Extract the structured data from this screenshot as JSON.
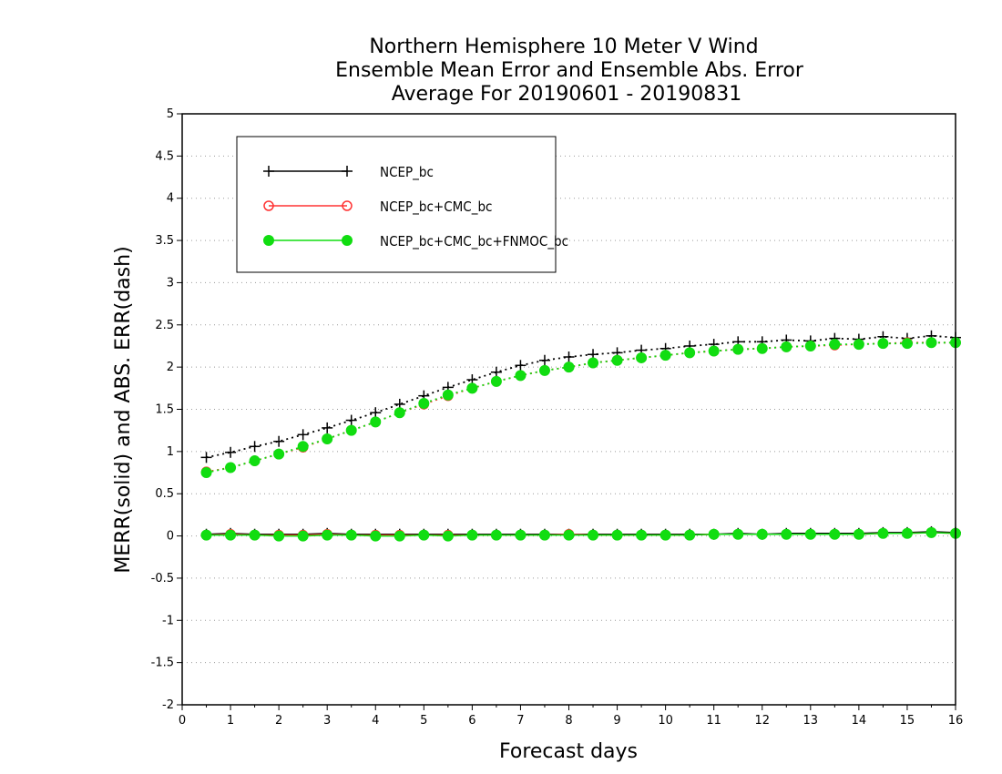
{
  "chart_data": {
    "type": "line",
    "title": [
      "Northern Hemisphere 10 Meter V Wind",
      "Ensemble Mean Error and Ensemble Abs. Error",
      "Average For 20190601 - 20190831"
    ],
    "xlabel": "Forecast days",
    "ylabel": "MERR(solid) and ABS. ERR(dash)",
    "xlim": [
      0,
      16
    ],
    "ylim": [
      -2,
      5
    ],
    "xticks": [
      "0",
      "1",
      "2",
      "3",
      "4",
      "5",
      "6",
      "7",
      "8",
      "9",
      "10",
      "11",
      "12",
      "13",
      "14",
      "15",
      "16"
    ],
    "yticks": [
      "5",
      "4.5",
      "4",
      "3.5",
      "3",
      "2.5",
      "2",
      "1.5",
      "1",
      "0.5",
      "0",
      "-0.5",
      "-1",
      "-1.5",
      "-2"
    ],
    "grid": "horizontal dotted",
    "legend_position": "top-left",
    "x": [
      0.5,
      1,
      1.5,
      2,
      2.5,
      3,
      3.5,
      4,
      4.5,
      5,
      5.5,
      6,
      6.5,
      7,
      7.5,
      8,
      8.5,
      9,
      9.5,
      10,
      10.5,
      11,
      11.5,
      12,
      12.5,
      13,
      13.5,
      14,
      14.5,
      15,
      15.5,
      16
    ],
    "series": [
      {
        "name": "NCEP_bc",
        "color": "#000000",
        "marker": "plus",
        "merr": [
          0.02,
          0.03,
          0.02,
          0.02,
          0.02,
          0.03,
          0.02,
          0.02,
          0.02,
          0.02,
          0.02,
          0.02,
          0.02,
          0.02,
          0.02,
          0.02,
          0.02,
          0.02,
          0.02,
          0.02,
          0.02,
          0.02,
          0.03,
          0.02,
          0.03,
          0.03,
          0.03,
          0.03,
          0.04,
          0.04,
          0.05,
          0.04
        ],
        "abs_err": [
          0.93,
          0.99,
          1.06,
          1.12,
          1.2,
          1.28,
          1.37,
          1.46,
          1.56,
          1.66,
          1.76,
          1.85,
          1.94,
          2.02,
          2.08,
          2.12,
          2.15,
          2.17,
          2.2,
          2.22,
          2.25,
          2.27,
          2.3,
          2.3,
          2.32,
          2.31,
          2.34,
          2.33,
          2.36,
          2.34,
          2.37,
          2.35
        ]
      },
      {
        "name": "NCEP_bc+CMC_bc",
        "color": "#ff3333",
        "marker": "open-circle",
        "merr": [
          0.01,
          0.02,
          0.01,
          0.01,
          0.01,
          0.02,
          0.01,
          0.01,
          0.01,
          0.01,
          0.01,
          0.01,
          0.01,
          0.01,
          0.01,
          0.02,
          0.01,
          0.01,
          0.01,
          0.01,
          0.01,
          0.02,
          0.02,
          0.02,
          0.02,
          0.02,
          0.02,
          0.02,
          0.03,
          0.03,
          0.04,
          0.03
        ],
        "abs_err": [
          0.76,
          0.81,
          0.89,
          0.97,
          1.05,
          1.15,
          1.25,
          1.35,
          1.46,
          1.56,
          1.66,
          1.75,
          1.83,
          1.9,
          1.96,
          2.0,
          2.05,
          2.08,
          2.11,
          2.14,
          2.17,
          2.19,
          2.21,
          2.22,
          2.24,
          2.25,
          2.26,
          2.27,
          2.28,
          2.29,
          2.29,
          2.29
        ]
      },
      {
        "name": "NCEP_bc+CMC_bc+FNMOC_bc",
        "color": "#11dd11",
        "marker": "filled-circle",
        "merr": [
          0.01,
          0.01,
          0.01,
          0.0,
          0.0,
          0.01,
          0.01,
          0.0,
          0.0,
          0.01,
          0.0,
          0.01,
          0.01,
          0.01,
          0.01,
          0.01,
          0.01,
          0.01,
          0.01,
          0.01,
          0.01,
          0.02,
          0.02,
          0.02,
          0.02,
          0.02,
          0.02,
          0.02,
          0.03,
          0.03,
          0.04,
          0.03
        ],
        "abs_err": [
          0.75,
          0.81,
          0.89,
          0.97,
          1.06,
          1.15,
          1.25,
          1.35,
          1.46,
          1.57,
          1.67,
          1.75,
          1.83,
          1.9,
          1.96,
          2.0,
          2.05,
          2.08,
          2.11,
          2.14,
          2.17,
          2.19,
          2.21,
          2.22,
          2.24,
          2.25,
          2.27,
          2.27,
          2.28,
          2.28,
          2.29,
          2.29
        ]
      }
    ]
  }
}
